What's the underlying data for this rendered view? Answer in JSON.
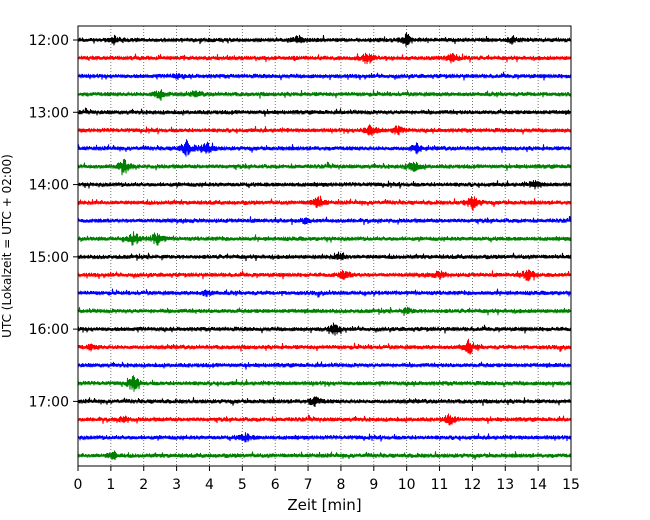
{
  "chart_data": {
    "type": "line",
    "chart_kind": "helicorder",
    "xlabel": "Zeit  [min]",
    "ylabel": "UTC (Lokalzeit = UTC + 02:00)",
    "xlim": [
      0,
      15
    ],
    "x_ticks": [
      0,
      1,
      2,
      3,
      4,
      5,
      6,
      7,
      8,
      9,
      10,
      11,
      12,
      13,
      14,
      15
    ],
    "vertical_grid": "dotted",
    "y_tick_labels": [
      "12:00",
      "13:00",
      "14:00",
      "15:00",
      "16:00",
      "17:00"
    ],
    "trace_colors": [
      "#000000",
      "#ff0000",
      "#0000ff",
      "#008000"
    ],
    "traces": [
      {
        "start": "12:00",
        "events": [
          {
            "x": 1.1,
            "amp": 0.5
          },
          {
            "x": 6.7,
            "amp": 0.6
          },
          {
            "x": 10.0,
            "amp": 0.9
          },
          {
            "x": 13.2,
            "amp": 0.4
          }
        ]
      },
      {
        "start": "12:15",
        "events": [
          {
            "x": 8.8,
            "amp": 0.8
          },
          {
            "x": 11.4,
            "amp": 0.6
          }
        ]
      },
      {
        "start": "12:30",
        "events": [
          {
            "x": 3.0,
            "amp": 0.3
          }
        ]
      },
      {
        "start": "12:45",
        "events": [
          {
            "x": 2.5,
            "amp": 0.8
          },
          {
            "x": 3.6,
            "amp": 0.3
          }
        ]
      },
      {
        "start": "13:00",
        "events": []
      },
      {
        "start": "13:15",
        "events": [
          {
            "x": 8.9,
            "amp": 0.9
          },
          {
            "x": 9.7,
            "amp": 0.6
          }
        ]
      },
      {
        "start": "13:30",
        "events": [
          {
            "x": 3.3,
            "amp": 1.0
          },
          {
            "x": 3.9,
            "amp": 1.0
          },
          {
            "x": 10.3,
            "amp": 0.8
          }
        ]
      },
      {
        "start": "13:45",
        "events": [
          {
            "x": 1.4,
            "amp": 1.0
          },
          {
            "x": 10.2,
            "amp": 0.8
          }
        ]
      },
      {
        "start": "14:00",
        "events": [
          {
            "x": 13.9,
            "amp": 0.5
          }
        ]
      },
      {
        "start": "14:15",
        "events": [
          {
            "x": 7.3,
            "amp": 0.8
          },
          {
            "x": 12.0,
            "amp": 1.0
          }
        ]
      },
      {
        "start": "14:30",
        "events": [
          {
            "x": 6.9,
            "amp": 0.3
          }
        ]
      },
      {
        "start": "14:45",
        "events": [
          {
            "x": 1.7,
            "amp": 0.9
          },
          {
            "x": 2.4,
            "amp": 0.9
          }
        ]
      },
      {
        "start": "15:00",
        "events": [
          {
            "x": 8.0,
            "amp": 0.5
          }
        ]
      },
      {
        "start": "15:15",
        "events": [
          {
            "x": 8.1,
            "amp": 0.6
          },
          {
            "x": 11.0,
            "amp": 0.5
          },
          {
            "x": 13.7,
            "amp": 0.9
          }
        ]
      },
      {
        "start": "15:30",
        "events": [
          {
            "x": 3.9,
            "amp": 0.4
          }
        ]
      },
      {
        "start": "15:45",
        "events": [
          {
            "x": 10.0,
            "amp": 0.4
          }
        ]
      },
      {
        "start": "16:00",
        "events": [
          {
            "x": 7.8,
            "amp": 0.7
          }
        ]
      },
      {
        "start": "16:15",
        "events": [
          {
            "x": 0.4,
            "amp": 0.3
          },
          {
            "x": 11.9,
            "amp": 1.0
          }
        ]
      },
      {
        "start": "16:30",
        "events": []
      },
      {
        "start": "16:45",
        "events": [
          {
            "x": 1.7,
            "amp": 1.0
          }
        ]
      },
      {
        "start": "17:00",
        "events": [
          {
            "x": 7.2,
            "amp": 0.7
          }
        ]
      },
      {
        "start": "17:15",
        "events": [
          {
            "x": 1.4,
            "amp": 0.4
          },
          {
            "x": 11.3,
            "amp": 0.7
          }
        ]
      },
      {
        "start": "17:30",
        "events": [
          {
            "x": 5.1,
            "amp": 0.6
          }
        ]
      },
      {
        "start": "17:45",
        "events": [
          {
            "x": 1.1,
            "amp": 0.5
          }
        ]
      }
    ]
  }
}
